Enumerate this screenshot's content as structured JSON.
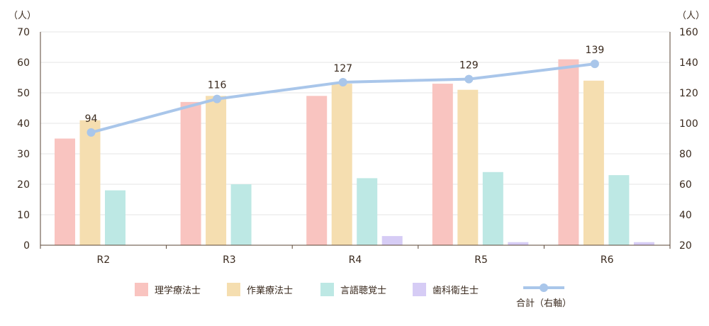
{
  "chart_data": {
    "type": "bar",
    "categories": [
      "R2",
      "R3",
      "R4",
      "R5",
      "R6"
    ],
    "series": [
      {
        "name": "理学療法士",
        "values": [
          35,
          47,
          49,
          53,
          61
        ],
        "color": "#f9c4c0",
        "axis": "left"
      },
      {
        "name": "作業療法士",
        "values": [
          41,
          49,
          53,
          51,
          54
        ],
        "color": "#f5deb0",
        "axis": "left"
      },
      {
        "name": "言語聴覚士",
        "values": [
          18,
          20,
          22,
          24,
          23
        ],
        "color": "#bde8e4",
        "axis": "left"
      },
      {
        "name": "歯科衛生士",
        "values": [
          0,
          0,
          3,
          1,
          1
        ],
        "color": "#d6ccf5",
        "axis": "left"
      }
    ],
    "line": {
      "name": "合計（右軸）",
      "values": [
        94,
        116,
        127,
        129,
        139
      ],
      "color": "#a9c6ea",
      "axis": "right"
    },
    "left_axis": {
      "unit": "（人）",
      "ylim": [
        0,
        70
      ],
      "ticks": [
        "0",
        "10",
        "20",
        "30",
        "40",
        "50",
        "60",
        "70"
      ]
    },
    "right_axis": {
      "unit": "（人）",
      "ylim": [
        20,
        160
      ],
      "ticks": [
        "20",
        "40",
        "60",
        "80",
        "100",
        "120",
        "140",
        "160"
      ]
    },
    "grid": true,
    "legend_position": "bottom"
  }
}
